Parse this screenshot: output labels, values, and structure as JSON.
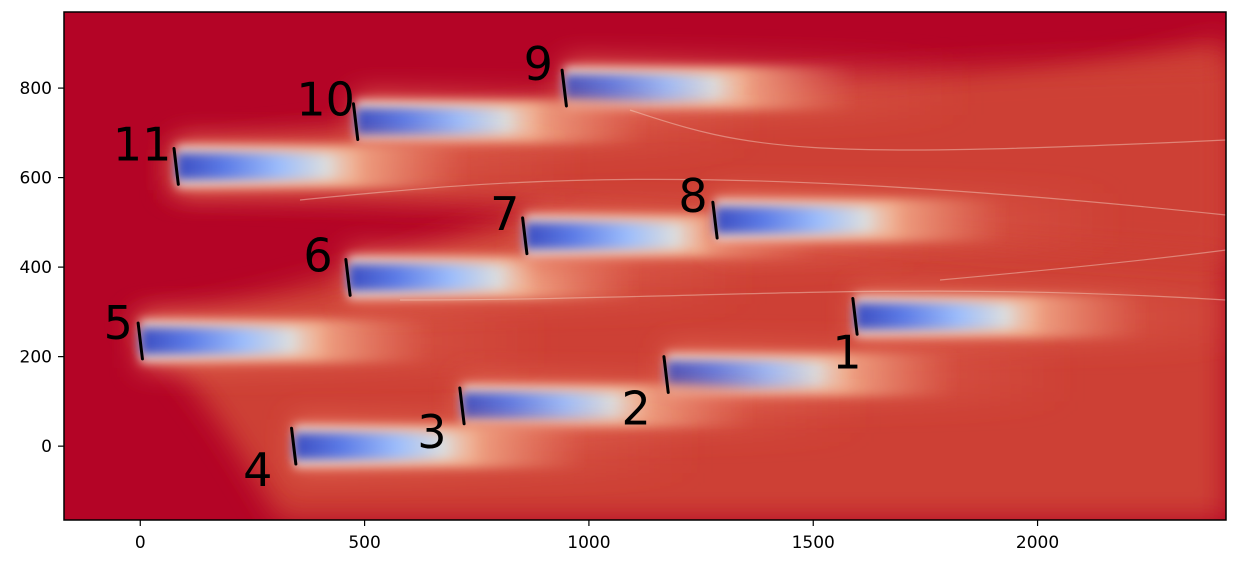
{
  "chart_data": {
    "type": "heatmap",
    "title": "",
    "xlabel": "",
    "ylabel": "",
    "xlim": [
      -170,
      2420
    ],
    "ylim": [
      -165,
      970
    ],
    "x_ticks": [
      {
        "value": 0,
        "label": "0"
      },
      {
        "value": 500,
        "label": "500"
      },
      {
        "value": 1000,
        "label": "1000"
      },
      {
        "value": 1500,
        "label": "1500"
      },
      {
        "value": 2000,
        "label": "2000"
      }
    ],
    "y_ticks": [
      {
        "value": 0,
        "label": "0"
      },
      {
        "value": 200,
        "label": "200"
      },
      {
        "value": 400,
        "label": "400"
      },
      {
        "value": 600,
        "label": "600"
      },
      {
        "value": 800,
        "label": "800"
      }
    ],
    "grid": false,
    "colormap": "coolwarm",
    "colors": {
      "freestream": "#b40426",
      "field": "#cd4035",
      "wake_light": "#f2c0a7",
      "wake_core": "#5b7ae6",
      "contour": "#f7d6c8",
      "turbine": "#000000"
    },
    "turbines": [
      {
        "id": "1",
        "x": 1593,
        "y": 290
      },
      {
        "id": "2",
        "x": 1172,
        "y": 160
      },
      {
        "id": "3",
        "x": 717,
        "y": 90
      },
      {
        "id": "4",
        "x": 342,
        "y": 0
      },
      {
        "id": "5",
        "x": 0,
        "y": 235
      },
      {
        "id": "6",
        "x": 463,
        "y": 377
      },
      {
        "id": "7",
        "x": 857,
        "y": 470
      },
      {
        "id": "8",
        "x": 1281,
        "y": 505
      },
      {
        "id": "9",
        "x": 945,
        "y": 800
      },
      {
        "id": "10",
        "x": 480,
        "y": 725
      },
      {
        "id": "11",
        "x": 80,
        "y": 625
      }
    ]
  }
}
